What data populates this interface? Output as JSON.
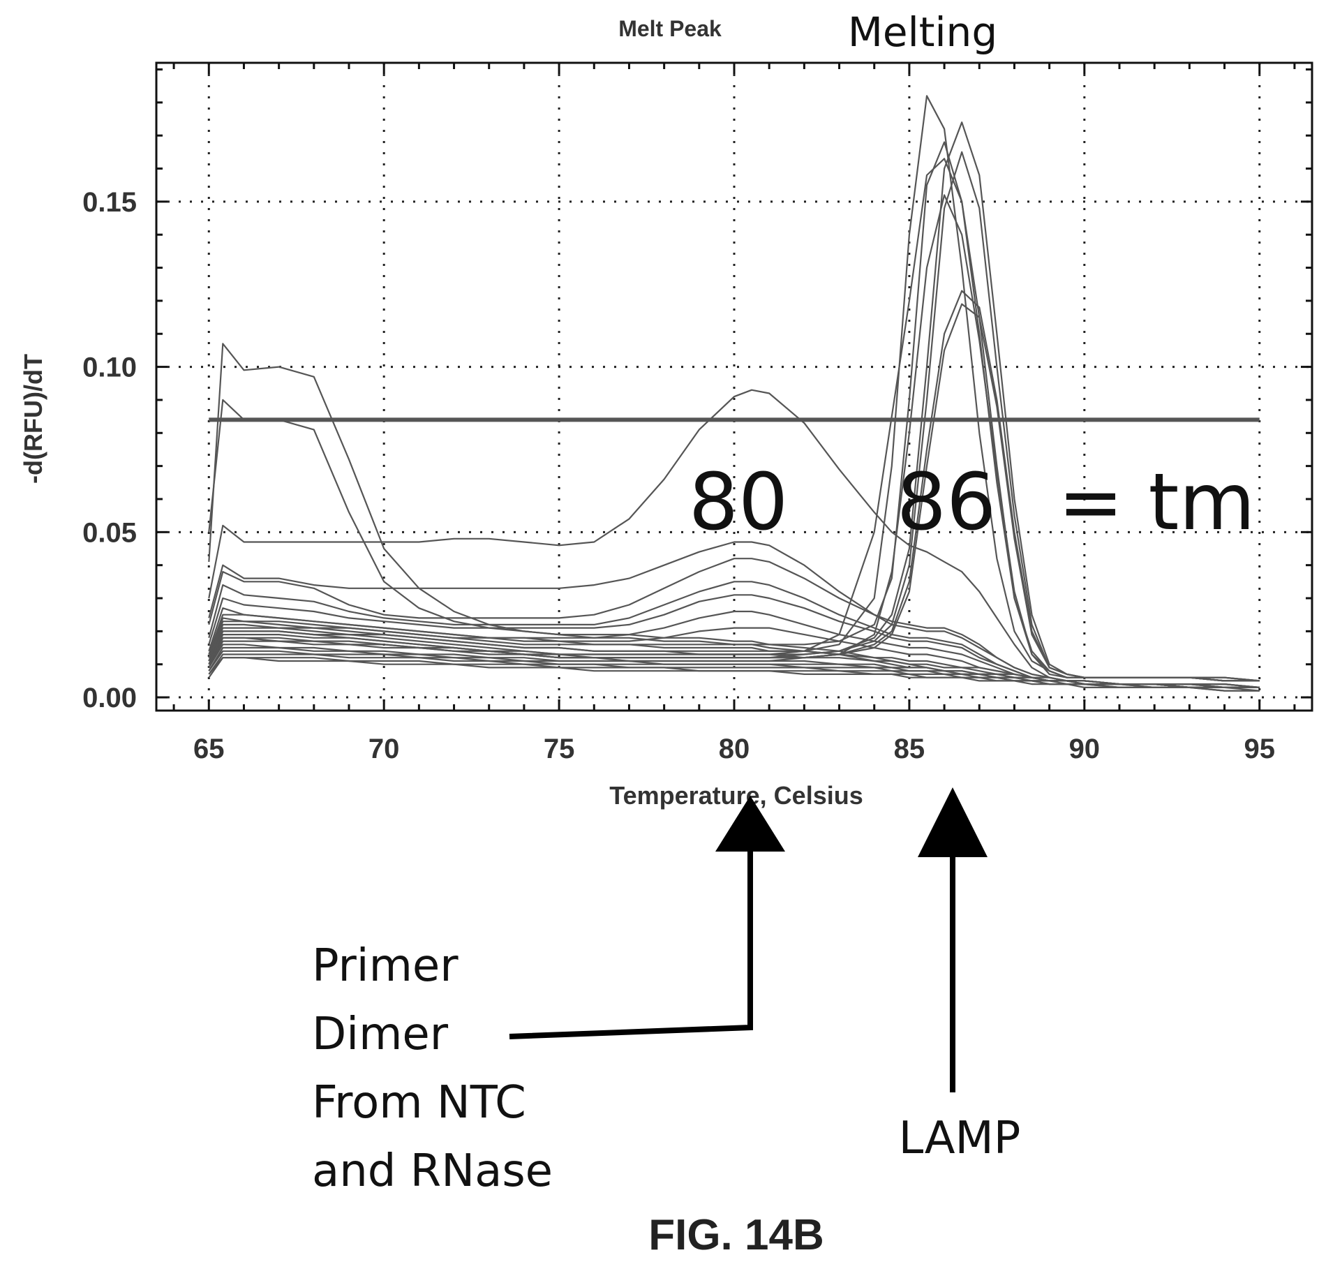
{
  "figure_label": "FIG. 14B",
  "chart_data": {
    "type": "line",
    "title": "Melt Peak",
    "subtitle": "Melting",
    "xlabel": "Temperature, Celsius",
    "ylabel": "-d(RFU)/dT",
    "xlim": [
      63.5,
      96.5
    ],
    "ylim": [
      -0.004,
      0.192
    ],
    "xticks": [
      65,
      70,
      75,
      80,
      85,
      90,
      95
    ],
    "yticks": [
      0.0,
      0.05,
      0.1,
      0.15
    ],
    "ytick_labels": [
      "0.00",
      "0.05",
      "0.10",
      "0.15"
    ],
    "grid": true,
    "threshold": 0.084,
    "x": [
      65,
      65.4,
      66,
      67,
      68,
      69,
      70,
      71,
      72,
      73,
      74,
      75,
      76,
      77,
      78,
      79,
      80,
      80.5,
      81,
      82,
      83,
      84,
      84.5,
      85,
      85.5,
      86,
      86.5,
      87,
      87.5,
      88,
      88.5,
      89,
      89.5,
      90,
      91,
      92,
      93,
      94,
      95
    ],
    "series": [
      {
        "values": [
          0.041,
          0.107,
          0.099,
          0.1,
          0.097,
          0.072,
          0.045,
          0.033,
          0.026,
          0.022,
          0.02,
          0.019,
          0.019,
          0.019,
          0.018,
          0.018,
          0.017,
          0.017,
          0.016,
          0.015,
          0.014,
          0.012,
          0.011,
          0.01,
          0.009,
          0.008,
          0.008,
          0.007,
          0.007,
          0.006,
          0.006,
          0.005,
          0.005,
          0.004,
          0.004,
          0.004,
          0.003,
          0.003,
          0.003
        ]
      },
      {
        "values": [
          0.05,
          0.09,
          0.084,
          0.084,
          0.081,
          0.056,
          0.035,
          0.027,
          0.023,
          0.021,
          0.02,
          0.019,
          0.018,
          0.018,
          0.017,
          0.017,
          0.016,
          0.016,
          0.015,
          0.014,
          0.013,
          0.011,
          0.01,
          0.009,
          0.009,
          0.008,
          0.007,
          0.007,
          0.006,
          0.006,
          0.005,
          0.005,
          0.005,
          0.004,
          0.004,
          0.003,
          0.003,
          0.003,
          0.003
        ]
      },
      {
        "values": [
          0.03,
          0.052,
          0.047,
          0.047,
          0.047,
          0.047,
          0.047,
          0.047,
          0.048,
          0.048,
          0.047,
          0.046,
          0.047,
          0.054,
          0.066,
          0.081,
          0.091,
          0.093,
          0.092,
          0.083,
          0.069,
          0.056,
          0.05,
          0.046,
          0.044,
          0.041,
          0.038,
          0.032,
          0.024,
          0.016,
          0.009,
          0.006,
          0.005,
          0.005,
          0.004,
          0.004,
          0.004,
          0.004,
          0.003
        ]
      },
      {
        "values": [
          0.024,
          0.04,
          0.036,
          0.036,
          0.034,
          0.033,
          0.033,
          0.033,
          0.033,
          0.033,
          0.033,
          0.033,
          0.034,
          0.036,
          0.04,
          0.044,
          0.047,
          0.047,
          0.046,
          0.04,
          0.032,
          0.025,
          0.022,
          0.021,
          0.02,
          0.02,
          0.018,
          0.015,
          0.012,
          0.009,
          0.007,
          0.006,
          0.005,
          0.005,
          0.004,
          0.004,
          0.004,
          0.004,
          0.003
        ]
      },
      {
        "values": [
          0.022,
          0.038,
          0.035,
          0.035,
          0.033,
          0.028,
          0.025,
          0.024,
          0.024,
          0.024,
          0.024,
          0.024,
          0.025,
          0.028,
          0.033,
          0.038,
          0.042,
          0.042,
          0.041,
          0.036,
          0.03,
          0.025,
          0.023,
          0.022,
          0.021,
          0.021,
          0.019,
          0.016,
          0.012,
          0.009,
          0.007,
          0.006,
          0.005,
          0.005,
          0.004,
          0.004,
          0.004,
          0.004,
          0.003
        ]
      },
      {
        "values": [
          0.018,
          0.034,
          0.031,
          0.03,
          0.029,
          0.026,
          0.024,
          0.023,
          0.022,
          0.022,
          0.022,
          0.022,
          0.022,
          0.024,
          0.028,
          0.032,
          0.035,
          0.035,
          0.034,
          0.03,
          0.025,
          0.021,
          0.019,
          0.018,
          0.018,
          0.017,
          0.016,
          0.013,
          0.01,
          0.008,
          0.006,
          0.005,
          0.005,
          0.004,
          0.004,
          0.004,
          0.004,
          0.003,
          0.003
        ]
      },
      {
        "values": [
          0.016,
          0.03,
          0.028,
          0.027,
          0.026,
          0.024,
          0.023,
          0.022,
          0.021,
          0.021,
          0.021,
          0.021,
          0.021,
          0.022,
          0.025,
          0.029,
          0.031,
          0.031,
          0.03,
          0.027,
          0.023,
          0.02,
          0.018,
          0.017,
          0.017,
          0.016,
          0.015,
          0.012,
          0.01,
          0.008,
          0.006,
          0.005,
          0.005,
          0.004,
          0.004,
          0.004,
          0.004,
          0.003,
          0.003
        ]
      },
      {
        "values": [
          0.014,
          0.027,
          0.025,
          0.024,
          0.023,
          0.022,
          0.021,
          0.02,
          0.019,
          0.018,
          0.018,
          0.018,
          0.018,
          0.019,
          0.021,
          0.024,
          0.026,
          0.026,
          0.025,
          0.022,
          0.019,
          0.017,
          0.016,
          0.015,
          0.015,
          0.014,
          0.013,
          0.011,
          0.009,
          0.007,
          0.006,
          0.005,
          0.005,
          0.004,
          0.004,
          0.004,
          0.003,
          0.003,
          0.003
        ]
      },
      {
        "values": [
          0.012,
          0.024,
          0.023,
          0.022,
          0.021,
          0.021,
          0.02,
          0.019,
          0.018,
          0.018,
          0.018,
          0.017,
          0.017,
          0.017,
          0.018,
          0.02,
          0.021,
          0.021,
          0.021,
          0.019,
          0.017,
          0.015,
          0.014,
          0.013,
          0.013,
          0.012,
          0.011,
          0.009,
          0.008,
          0.007,
          0.006,
          0.005,
          0.005,
          0.004,
          0.004,
          0.004,
          0.003,
          0.003,
          0.003
        ]
      },
      {
        "values": [
          0.012,
          0.023,
          0.023,
          0.023,
          0.022,
          0.021,
          0.02,
          0.019,
          0.018,
          0.017,
          0.016,
          0.016,
          0.016,
          0.016,
          0.016,
          0.016,
          0.016,
          0.016,
          0.016,
          0.016,
          0.017,
          0.022,
          0.036,
          0.09,
          0.155,
          0.168,
          0.15,
          0.11,
          0.065,
          0.03,
          0.014,
          0.008,
          0.006,
          0.006,
          0.006,
          0.006,
          0.006,
          0.006,
          0.005
        ]
      },
      {
        "values": [
          0.011,
          0.021,
          0.021,
          0.021,
          0.02,
          0.019,
          0.019,
          0.018,
          0.017,
          0.016,
          0.015,
          0.015,
          0.014,
          0.014,
          0.014,
          0.014,
          0.014,
          0.014,
          0.014,
          0.014,
          0.016,
          0.03,
          0.07,
          0.14,
          0.182,
          0.172,
          0.13,
          0.08,
          0.042,
          0.02,
          0.011,
          0.008,
          0.006,
          0.006,
          0.006,
          0.006,
          0.006,
          0.006,
          0.005
        ]
      },
      {
        "values": [
          0.011,
          0.02,
          0.02,
          0.02,
          0.019,
          0.019,
          0.018,
          0.017,
          0.016,
          0.015,
          0.014,
          0.013,
          0.013,
          0.013,
          0.013,
          0.013,
          0.013,
          0.013,
          0.013,
          0.014,
          0.019,
          0.05,
          0.085,
          0.12,
          0.158,
          0.163,
          0.15,
          0.115,
          0.07,
          0.03,
          0.013,
          0.007,
          0.006,
          0.006,
          0.006,
          0.006,
          0.006,
          0.005,
          0.005
        ]
      },
      {
        "values": [
          0.01,
          0.019,
          0.019,
          0.019,
          0.018,
          0.018,
          0.017,
          0.016,
          0.015,
          0.014,
          0.014,
          0.013,
          0.013,
          0.013,
          0.013,
          0.013,
          0.013,
          0.013,
          0.013,
          0.013,
          0.014,
          0.018,
          0.025,
          0.045,
          0.1,
          0.16,
          0.174,
          0.158,
          0.11,
          0.06,
          0.025,
          0.01,
          0.007,
          0.006,
          0.006,
          0.006,
          0.006,
          0.006,
          0.005
        ]
      },
      {
        "values": [
          0.01,
          0.018,
          0.018,
          0.018,
          0.017,
          0.017,
          0.016,
          0.015,
          0.015,
          0.014,
          0.013,
          0.013,
          0.012,
          0.012,
          0.012,
          0.012,
          0.012,
          0.012,
          0.012,
          0.013,
          0.014,
          0.017,
          0.022,
          0.04,
          0.09,
          0.148,
          0.165,
          0.148,
          0.1,
          0.055,
          0.022,
          0.009,
          0.007,
          0.006,
          0.006,
          0.006,
          0.006,
          0.005,
          0.005
        ]
      },
      {
        "values": [
          0.009,
          0.018,
          0.018,
          0.017,
          0.017,
          0.016,
          0.016,
          0.015,
          0.014,
          0.014,
          0.013,
          0.012,
          0.012,
          0.012,
          0.012,
          0.012,
          0.012,
          0.012,
          0.012,
          0.012,
          0.013,
          0.016,
          0.02,
          0.035,
          0.075,
          0.11,
          0.123,
          0.118,
          0.09,
          0.05,
          0.02,
          0.009,
          0.007,
          0.006,
          0.006,
          0.006,
          0.006,
          0.005,
          0.005
        ]
      },
      {
        "values": [
          0.009,
          0.017,
          0.017,
          0.017,
          0.016,
          0.016,
          0.015,
          0.015,
          0.014,
          0.013,
          0.013,
          0.012,
          0.012,
          0.011,
          0.011,
          0.011,
          0.011,
          0.011,
          0.011,
          0.012,
          0.013,
          0.015,
          0.019,
          0.032,
          0.07,
          0.105,
          0.119,
          0.115,
          0.088,
          0.048,
          0.019,
          0.009,
          0.007,
          0.006,
          0.006,
          0.006,
          0.006,
          0.005,
          0.005
        ]
      },
      {
        "values": [
          0.01,
          0.02,
          0.02,
          0.02,
          0.019,
          0.018,
          0.017,
          0.016,
          0.015,
          0.014,
          0.013,
          0.012,
          0.012,
          0.012,
          0.012,
          0.012,
          0.012,
          0.012,
          0.012,
          0.012,
          0.013,
          0.019,
          0.038,
          0.08,
          0.13,
          0.152,
          0.14,
          0.108,
          0.068,
          0.032,
          0.013,
          0.008,
          0.006,
          0.006,
          0.006,
          0.006,
          0.006,
          0.005,
          0.005
        ]
      },
      {
        "values": [
          0.009,
          0.016,
          0.016,
          0.015,
          0.015,
          0.014,
          0.014,
          0.013,
          0.013,
          0.012,
          0.012,
          0.011,
          0.011,
          0.011,
          0.011,
          0.011,
          0.011,
          0.011,
          0.011,
          0.011,
          0.01,
          0.01,
          0.009,
          0.009,
          0.009,
          0.008,
          0.008,
          0.007,
          0.007,
          0.006,
          0.006,
          0.005,
          0.005,
          0.004,
          0.004,
          0.004,
          0.003,
          0.003,
          0.003
        ]
      },
      {
        "values": [
          0.008,
          0.015,
          0.015,
          0.015,
          0.014,
          0.014,
          0.013,
          0.013,
          0.012,
          0.012,
          0.011,
          0.011,
          0.011,
          0.011,
          0.01,
          0.01,
          0.01,
          0.01,
          0.01,
          0.01,
          0.01,
          0.009,
          0.009,
          0.008,
          0.008,
          0.008,
          0.007,
          0.007,
          0.006,
          0.006,
          0.005,
          0.005,
          0.005,
          0.004,
          0.004,
          0.004,
          0.003,
          0.003,
          0.003
        ]
      },
      {
        "values": [
          0.008,
          0.014,
          0.014,
          0.014,
          0.013,
          0.013,
          0.013,
          0.012,
          0.012,
          0.011,
          0.011,
          0.01,
          0.01,
          0.01,
          0.01,
          0.01,
          0.01,
          0.01,
          0.01,
          0.009,
          0.009,
          0.009,
          0.008,
          0.008,
          0.008,
          0.007,
          0.007,
          0.006,
          0.006,
          0.005,
          0.005,
          0.005,
          0.004,
          0.004,
          0.004,
          0.003,
          0.003,
          0.003,
          0.003
        ]
      },
      {
        "values": [
          0.007,
          0.013,
          0.013,
          0.013,
          0.013,
          0.012,
          0.012,
          0.012,
          0.011,
          0.011,
          0.01,
          0.01,
          0.01,
          0.009,
          0.009,
          0.009,
          0.009,
          0.009,
          0.009,
          0.009,
          0.008,
          0.008,
          0.008,
          0.007,
          0.007,
          0.007,
          0.006,
          0.006,
          0.006,
          0.005,
          0.005,
          0.004,
          0.004,
          0.004,
          0.003,
          0.003,
          0.003,
          0.003,
          0.002
        ]
      },
      {
        "values": [
          0.007,
          0.012,
          0.012,
          0.012,
          0.012,
          0.011,
          0.011,
          0.011,
          0.01,
          0.01,
          0.01,
          0.009,
          0.009,
          0.009,
          0.009,
          0.008,
          0.008,
          0.008,
          0.008,
          0.008,
          0.008,
          0.007,
          0.007,
          0.007,
          0.006,
          0.006,
          0.006,
          0.006,
          0.005,
          0.005,
          0.005,
          0.004,
          0.004,
          0.004,
          0.003,
          0.003,
          0.003,
          0.002,
          0.002
        ]
      },
      {
        "values": [
          0.006,
          0.012,
          0.012,
          0.011,
          0.011,
          0.011,
          0.01,
          0.01,
          0.01,
          0.009,
          0.009,
          0.009,
          0.008,
          0.008,
          0.008,
          0.008,
          0.008,
          0.008,
          0.008,
          0.007,
          0.007,
          0.007,
          0.007,
          0.006,
          0.006,
          0.006,
          0.006,
          0.005,
          0.005,
          0.005,
          0.004,
          0.004,
          0.004,
          0.003,
          0.003,
          0.003,
          0.003,
          0.002,
          0.002
        ]
      },
      {
        "values": [
          0.013,
          0.025,
          0.025,
          0.024,
          0.023,
          0.022,
          0.021,
          0.02,
          0.019,
          0.018,
          0.017,
          0.017,
          0.016,
          0.016,
          0.015,
          0.015,
          0.015,
          0.015,
          0.014,
          0.014,
          0.013,
          0.012,
          0.012,
          0.011,
          0.011,
          0.01,
          0.009,
          0.009,
          0.008,
          0.007,
          0.006,
          0.006,
          0.005,
          0.005,
          0.004,
          0.004,
          0.004,
          0.003,
          0.003
        ]
      },
      {
        "values": [
          0.011,
          0.022,
          0.022,
          0.021,
          0.021,
          0.02,
          0.019,
          0.018,
          0.017,
          0.016,
          0.015,
          0.015,
          0.014,
          0.014,
          0.014,
          0.013,
          0.013,
          0.013,
          0.013,
          0.012,
          0.012,
          0.011,
          0.011,
          0.01,
          0.01,
          0.009,
          0.009,
          0.008,
          0.007,
          0.007,
          0.006,
          0.005,
          0.005,
          0.005,
          0.004,
          0.004,
          0.003,
          0.003,
          0.003
        ]
      }
    ]
  },
  "annotations": {
    "peak_80": "80",
    "peak_86": "86",
    "tm_label": "= tm",
    "primer_line_1": "Primer",
    "primer_line_2": "Dimer",
    "primer_line_3": "From NTC",
    "primer_line_4": "and RNase",
    "lamp_label": "LAMP"
  }
}
